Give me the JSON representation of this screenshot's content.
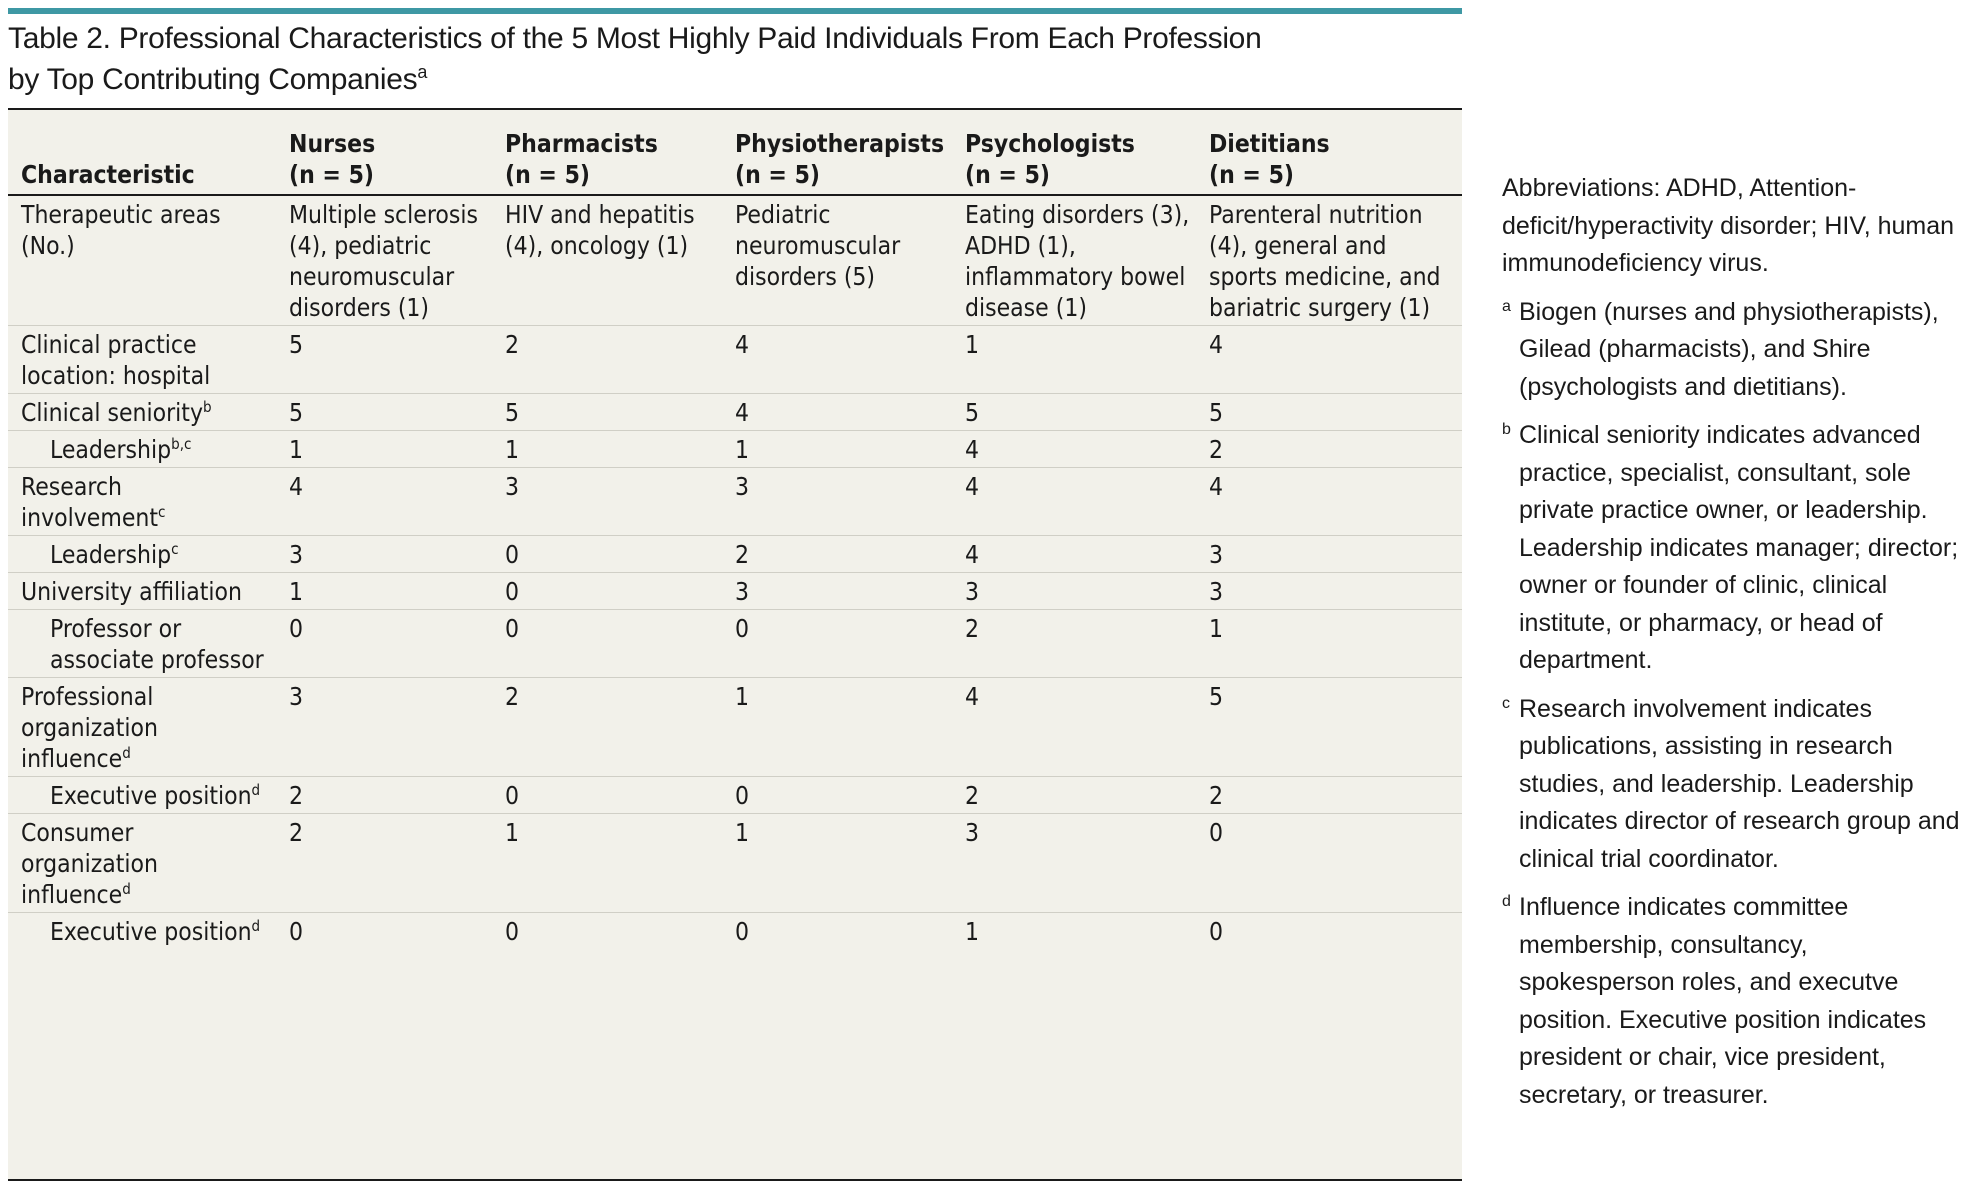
{
  "title": {
    "line1": "Table 2. Professional Characteristics of the 5 Most Highly Paid Individuals From Each Profession",
    "line2": "by Top Contributing Companies",
    "footnote_mark": "a"
  },
  "table": {
    "headers": [
      {
        "label": "Characteristic",
        "sub": ""
      },
      {
        "label": "Nurses",
        "sub": "(n = 5)"
      },
      {
        "label": "Pharmacists",
        "sub": "(n = 5)"
      },
      {
        "label": "Physiotherapists",
        "sub": "(n = 5)"
      },
      {
        "label": "Psychologists",
        "sub": "(n = 5)"
      },
      {
        "label": "Dietitians",
        "sub": "(n = 5)"
      }
    ],
    "rows": [
      {
        "label": "Therapeutic areas (No.)",
        "mark": "",
        "indent": false,
        "values": [
          "Multiple sclerosis (4), pediatric neuromuscular disorders (1)",
          "HIV and hepatitis (4), oncology (1)",
          "Pediatric neuromuscular disorders (5)",
          "Eating disorders (3), ADHD (1), inflammatory bowel disease (1)",
          "Parenteral nutrition (4), general and sports medicine, and bariatric surgery (1)"
        ]
      },
      {
        "label": "Clinical practice location: hospital",
        "mark": "",
        "indent": false,
        "values": [
          "5",
          "2",
          "4",
          "1",
          "4"
        ]
      },
      {
        "label": "Clinical seniority",
        "mark": "b",
        "indent": false,
        "values": [
          "5",
          "5",
          "4",
          "5",
          "5"
        ]
      },
      {
        "label": "Leadership",
        "mark": "b,c",
        "indent": true,
        "values": [
          "1",
          "1",
          "1",
          "4",
          "2"
        ]
      },
      {
        "label": "Research involvement",
        "mark": "c",
        "indent": false,
        "values": [
          "4",
          "3",
          "3",
          "4",
          "4"
        ]
      },
      {
        "label": "Leadership",
        "mark": "c",
        "indent": true,
        "values": [
          "3",
          "0",
          "2",
          "4",
          "3"
        ]
      },
      {
        "label": "University affiliation",
        "mark": "",
        "indent": false,
        "values": [
          "1",
          "0",
          "3",
          "3",
          "3"
        ]
      },
      {
        "label": "Professor or associate professor",
        "mark": "",
        "indent": true,
        "values": [
          "0",
          "0",
          "0",
          "2",
          "1"
        ]
      },
      {
        "label": "Professional organization influence",
        "mark": "d",
        "indent": false,
        "values": [
          "3",
          "2",
          "1",
          "4",
          "5"
        ]
      },
      {
        "label": "Executive position",
        "mark": "d",
        "indent": true,
        "values": [
          "2",
          "0",
          "0",
          "2",
          "2"
        ]
      },
      {
        "label": "Consumer organization influence",
        "mark": "d",
        "indent": false,
        "values": [
          "2",
          "1",
          "1",
          "3",
          "0"
        ]
      },
      {
        "label": "Executive position",
        "mark": "d",
        "indent": true,
        "values": [
          "0",
          "0",
          "0",
          "1",
          "0"
        ]
      }
    ]
  },
  "notes": {
    "abbreviations": "Abbreviations: ADHD, Attention-deficit/hyperactivity disorder; HIV, human immunodeficiency virus.",
    "footnotes": [
      {
        "mark": "a",
        "text": "Biogen (nurses and physiotherapists), Gilead (pharmacists), and Shire (psychologists and dietitians)."
      },
      {
        "mark": "b",
        "text": "Clinical seniority indicates advanced practice, specialist, consultant, sole private practice owner, or leadership. Leadership indicates manager; director; owner or founder of clinic, clinical institute, or pharmacy, or head of department."
      },
      {
        "mark": "c",
        "text": "Research involvement indicates publications, assisting in research studies, and leadership. Leadership indicates director of research group and clinical trial coordinator."
      },
      {
        "mark": "d",
        "text": "Influence indicates committee membership, consultancy, spokesperson roles, and executve position. Executive position indicates president or chair, vice president, secretary, or treasurer."
      }
    ]
  },
  "colors": {
    "accent_bar": "#3e98a4",
    "table_background": "#f2f1ea",
    "rule": "#1a1a1a"
  }
}
